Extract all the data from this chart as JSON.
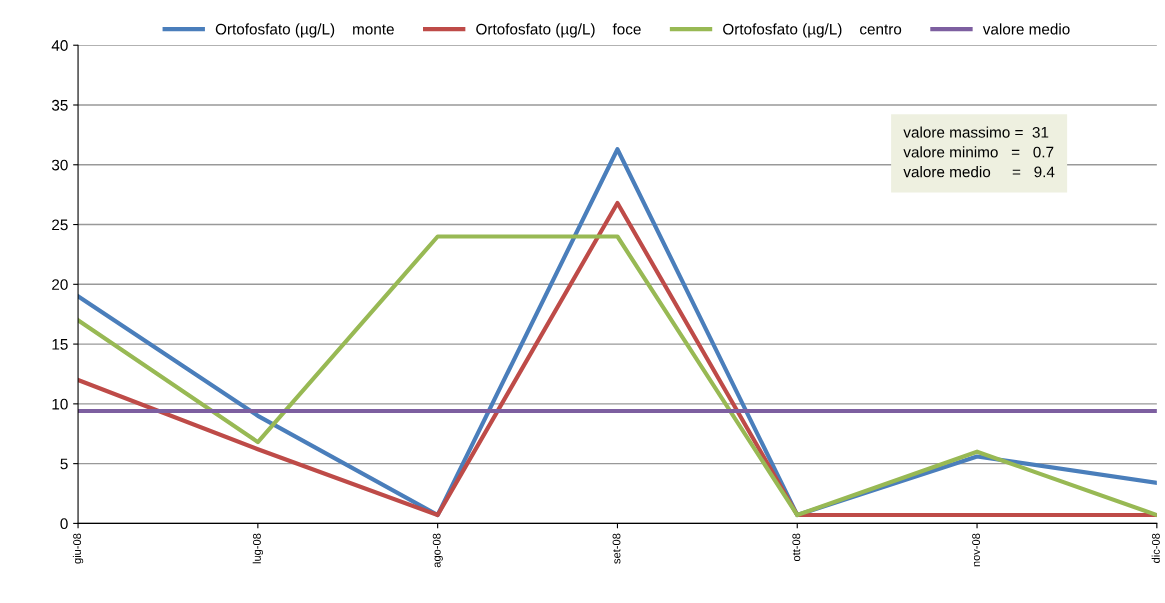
{
  "chart_data": {
    "type": "line",
    "categories": [
      "giu-08",
      "lug-08",
      "ago-08",
      "set-08",
      "ott-08",
      "nov-08",
      "dic-08"
    ],
    "series": [
      {
        "name": "Ortofosfato (µg/L)    monte",
        "color": "#4a7ebb",
        "values": [
          19,
          9,
          0.7,
          31.3,
          0.7,
          5.6,
          3.4
        ]
      },
      {
        "name": "Ortofosfato (µg/L)    foce",
        "color": "#be4b48",
        "values": [
          12,
          6.2,
          0.7,
          26.8,
          0.7,
          0.7,
          0.7
        ]
      },
      {
        "name": "Ortofosfato (µg/L)    centro",
        "color": "#98b954",
        "values": [
          17,
          6.8,
          24,
          24,
          0.7,
          6,
          0.7
        ]
      },
      {
        "name": "valore medio",
        "color": "#7d5fa0",
        "values": [
          9.4,
          9.4,
          9.4,
          9.4,
          9.4,
          9.4,
          9.4
        ]
      }
    ],
    "ylim": [
      0,
      40
    ],
    "yticks": [
      0,
      5,
      10,
      15,
      20,
      25,
      30,
      35,
      40
    ],
    "grid": "y",
    "legend": "top",
    "marker": "none",
    "line_style": "solid",
    "annotations": [
      "valore massimo =  31",
      "valore minimo   =   0.7",
      "valore medio     =   9.4"
    ]
  }
}
